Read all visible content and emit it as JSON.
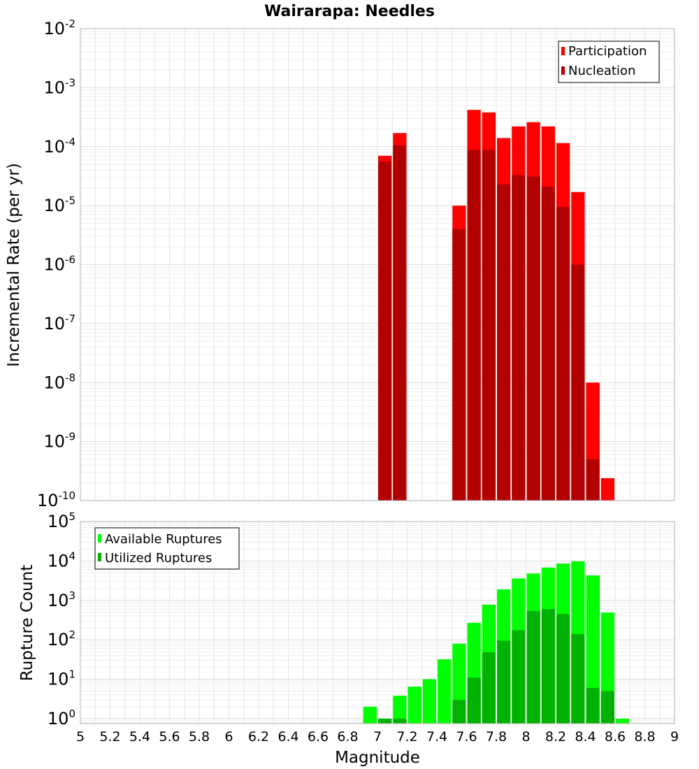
{
  "chart_data": [
    {
      "type": "bar",
      "title": "Wairarapa: Needles",
      "xlabel": "",
      "ylabel": "Incremental Rate (per yr)",
      "xlim": [
        5,
        9
      ],
      "ylim": [
        1e-10,
        0.01
      ],
      "yscale": "log",
      "grid": true,
      "legend_position": "top-right",
      "bar_width": 0.1,
      "series": [
        {
          "name": "Participation",
          "color": "#ff0000",
          "points": [
            {
              "x": 7.05,
              "y": 7e-05
            },
            {
              "x": 7.15,
              "y": 0.00017
            },
            {
              "x": 7.55,
              "y": 1e-05
            },
            {
              "x": 7.65,
              "y": 0.00042
            },
            {
              "x": 7.75,
              "y": 0.00038
            },
            {
              "x": 7.85,
              "y": 0.00014
            },
            {
              "x": 7.95,
              "y": 0.00022
            },
            {
              "x": 8.05,
              "y": 0.00026
            },
            {
              "x": 8.15,
              "y": 0.00022
            },
            {
              "x": 8.25,
              "y": 0.000115
            },
            {
              "x": 8.35,
              "y": 1.7e-05
            },
            {
              "x": 8.45,
              "y": 1e-08
            },
            {
              "x": 8.55,
              "y": 2.4e-10
            }
          ]
        },
        {
          "name": "Nucleation",
          "color": "#b20000",
          "points": [
            {
              "x": 7.05,
              "y": 5.6e-05
            },
            {
              "x": 7.15,
              "y": 0.000105
            },
            {
              "x": 7.55,
              "y": 4e-06
            },
            {
              "x": 7.65,
              "y": 8.8e-05
            },
            {
              "x": 7.75,
              "y": 8.8e-05
            },
            {
              "x": 7.85,
              "y": 2.3e-05
            },
            {
              "x": 7.95,
              "y": 3.3e-05
            },
            {
              "x": 8.05,
              "y": 3.1e-05
            },
            {
              "x": 8.15,
              "y": 2.1e-05
            },
            {
              "x": 8.25,
              "y": 9.5e-06
            },
            {
              "x": 8.35,
              "y": 1e-06
            },
            {
              "x": 8.45,
              "y": 5e-10
            }
          ]
        }
      ]
    },
    {
      "type": "bar",
      "title": "",
      "xlabel": "Magnitude",
      "ylabel": "Rupture Count",
      "xlim": [
        5,
        9
      ],
      "ylim": [
        0.75,
        100000
      ],
      "yscale": "log",
      "grid": true,
      "legend_position": "top-left",
      "bar_width": 0.1,
      "x_ticks": [
        "5",
        "5.2",
        "5.4",
        "5.6",
        "5.8",
        "6",
        "6.2",
        "6.4",
        "6.6",
        "6.8",
        "7",
        "7.2",
        "7.4",
        "7.6",
        "7.8",
        "8",
        "8.2",
        "8.4",
        "8.6",
        "8.8",
        "9"
      ],
      "series": [
        {
          "name": "Available Ruptures",
          "color": "#00ff00",
          "points": [
            {
              "x": 6.95,
              "y": 2
            },
            {
              "x": 7.05,
              "y": 1
            },
            {
              "x": 7.15,
              "y": 3.8
            },
            {
              "x": 7.25,
              "y": 6.5
            },
            {
              "x": 7.35,
              "y": 10
            },
            {
              "x": 7.45,
              "y": 32
            },
            {
              "x": 7.55,
              "y": 80
            },
            {
              "x": 7.65,
              "y": 270
            },
            {
              "x": 7.75,
              "y": 780
            },
            {
              "x": 7.85,
              "y": 1900
            },
            {
              "x": 7.95,
              "y": 3600
            },
            {
              "x": 8.05,
              "y": 4800
            },
            {
              "x": 8.15,
              "y": 6800
            },
            {
              "x": 8.25,
              "y": 8600
            },
            {
              "x": 8.35,
              "y": 9800
            },
            {
              "x": 8.45,
              "y": 4300
            },
            {
              "x": 8.55,
              "y": 490
            },
            {
              "x": 8.65,
              "y": 1
            }
          ]
        },
        {
          "name": "Utilized Ruptures",
          "color": "#00b200",
          "points": [
            {
              "x": 7.05,
              "y": 1
            },
            {
              "x": 7.15,
              "y": 1
            },
            {
              "x": 7.55,
              "y": 3
            },
            {
              "x": 7.65,
              "y": 11
            },
            {
              "x": 7.75,
              "y": 48
            },
            {
              "x": 7.85,
              "y": 95
            },
            {
              "x": 7.95,
              "y": 175
            },
            {
              "x": 8.05,
              "y": 540
            },
            {
              "x": 8.15,
              "y": 600
            },
            {
              "x": 8.25,
              "y": 450
            },
            {
              "x": 8.35,
              "y": 140
            },
            {
              "x": 8.45,
              "y": 6
            },
            {
              "x": 8.55,
              "y": 5
            }
          ]
        }
      ]
    }
  ]
}
